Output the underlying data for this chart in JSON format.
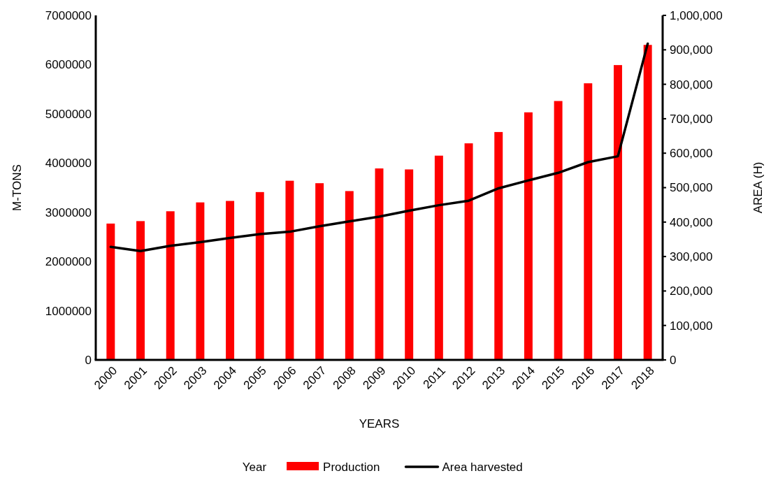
{
  "chart_data": {
    "type": "bar",
    "xlabel": "YEARS",
    "ylabel": "M-TONS",
    "y2label": "AREA (H)",
    "legend_title": "Year",
    "legend": "bottom",
    "grid": false,
    "categories": [
      "2000",
      "2001",
      "2002",
      "2003",
      "2004",
      "2005",
      "2006",
      "2007",
      "2008",
      "2009",
      "2010",
      "2011",
      "2012",
      "2013",
      "2014",
      "2015",
      "2016",
      "2017",
      "2018"
    ],
    "ylim": [
      0,
      7000000
    ],
    "yticks": [
      0,
      1000000,
      2000000,
      3000000,
      4000000,
      5000000,
      6000000,
      7000000
    ],
    "y2lim": [
      0,
      1000000
    ],
    "y2ticks": [
      {
        "value": 0,
        "label": "0"
      },
      {
        "value": 100000,
        "label": "100,000"
      },
      {
        "value": 200000,
        "label": "200,000"
      },
      {
        "value": 300000,
        "label": "300,000"
      },
      {
        "value": 400000,
        "label": "400,000"
      },
      {
        "value": 500000,
        "label": "500,000"
      },
      {
        "value": 600000,
        "label": "600,000"
      },
      {
        "value": 700000,
        "label": "700,000"
      },
      {
        "value": 800000,
        "label": "800,000"
      },
      {
        "value": 900000,
        "label": "900,000"
      },
      {
        "value": 1000000,
        "label": "1,000,000"
      }
    ],
    "series": [
      {
        "name": "Production",
        "color": "#ff0000",
        "values": [
          2770000,
          2820000,
          3020000,
          3200000,
          3230000,
          3410000,
          3640000,
          3590000,
          3430000,
          3890000,
          3870000,
          4150000,
          4400000,
          4630000,
          5030000,
          5260000,
          5620000,
          5990000,
          6400000
        ]
      },
      {
        "name": "Area harvested",
        "type": "line",
        "axis": "y2",
        "color": "#000000",
        "values": [
          328000,
          316000,
          331000,
          342000,
          354000,
          365000,
          372000,
          388000,
          402000,
          416000,
          433000,
          449000,
          462000,
          498000,
          521000,
          543000,
          574000,
          591000,
          918000
        ]
      }
    ]
  }
}
